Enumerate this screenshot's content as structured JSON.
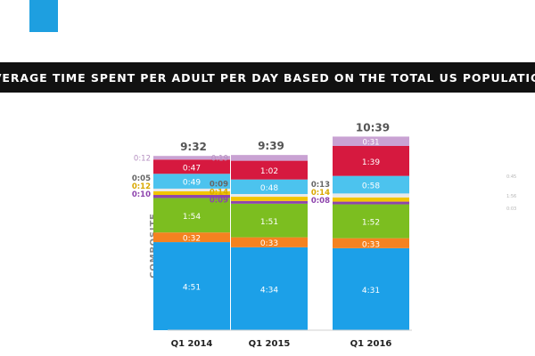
{
  "title": "AVERAGE TIME SPENT PER ADULT PER DAY BASED ON THE TOTAL US POPULATION",
  "ylabel": "COMPOSITE",
  "colors": {
    "title_bg": "#111111",
    "logo": "#1e9fe0",
    "axis_label": "#8a8a8a",
    "total_label": "#555555",
    "outside_label": "#666666"
  },
  "chart_data": {
    "type": "bar",
    "stacked": true,
    "categories": [
      "Q1 2014",
      "Q1 2015",
      "Q1 2016"
    ],
    "totals": [
      "9:32",
      "9:39",
      "10:39"
    ],
    "series": [
      {
        "label_color": "#ffffff",
        "color": "#1ca0e8",
        "values": [
          "4:51",
          "4:34",
          "4:31"
        ]
      },
      {
        "label_color": "#ffffff",
        "color": "#f58220",
        "values": [
          "0:32",
          "0:33",
          "0:33"
        ]
      },
      {
        "label_color": "#ffffff",
        "color": "#7cbe20",
        "values": [
          "1:54",
          "1:51",
          "1:52"
        ]
      },
      {
        "label_color": "#8e44ad",
        "color": "#8e44ad",
        "values": [
          "0:10",
          "0:09",
          "0:08"
        ]
      },
      {
        "label_color": "#d9a800",
        "color": "#f2c500",
        "values": [
          "0:12",
          "0:14",
          "0:14"
        ]
      },
      {
        "label_color": "#666666",
        "color": "#e9e9e9",
        "values": [
          "0:05",
          "0:09",
          "0:13"
        ]
      },
      {
        "label_color": "#ffffff",
        "color": "#4cc3ee",
        "values": [
          "0:49",
          "0:48",
          "0:58"
        ]
      },
      {
        "label_color": "#ffffff",
        "color": "#d6193f",
        "values": [
          "0:47",
          "1:02",
          "1:39"
        ]
      },
      {
        "label_color": "#ffffff",
        "color": "#c9a2d3",
        "values": [
          "0:12",
          "0:19",
          "0:31"
        ]
      }
    ],
    "side_labels": [
      "0:45",
      "1:56",
      "0:03"
    ]
  }
}
